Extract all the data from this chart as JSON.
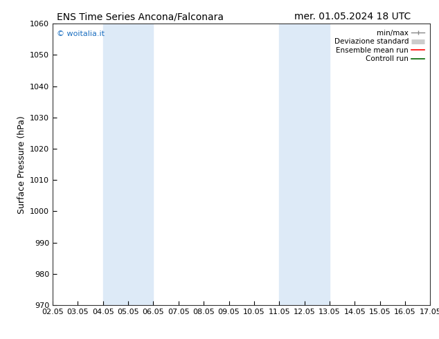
{
  "title_left": "ENS Time Series Ancona/Falconara",
  "title_right": "mer. 01.05.2024 18 UTC",
  "ylabel": "Surface Pressure (hPa)",
  "ylim": [
    970,
    1060
  ],
  "yticks": [
    970,
    980,
    990,
    1000,
    1010,
    1020,
    1030,
    1040,
    1050,
    1060
  ],
  "x_labels": [
    "02.05",
    "03.05",
    "04.05",
    "05.05",
    "06.05",
    "07.05",
    "08.05",
    "09.05",
    "10.05",
    "11.05",
    "12.05",
    "13.05",
    "14.05",
    "15.05",
    "16.05",
    "17.05"
  ],
  "x_values": [
    0,
    1,
    2,
    3,
    4,
    5,
    6,
    7,
    8,
    9,
    10,
    11,
    12,
    13,
    14,
    15
  ],
  "xlim": [
    0,
    15
  ],
  "shaded_bands": [
    {
      "x_start": 2,
      "x_end": 4,
      "color": "#ddeaf7"
    },
    {
      "x_start": 9,
      "x_end": 11,
      "color": "#ddeaf7"
    }
  ],
  "watermark": "© woitalia.it",
  "watermark_color": "#1a6ec0",
  "background_color": "#ffffff",
  "plot_bg_color": "#ffffff",
  "legend_entries": [
    {
      "label": "min/max",
      "line_color": "#888888",
      "lw": 1.0
    },
    {
      "label": "Deviazione standard",
      "line_color": "#cccccc",
      "lw": 5
    },
    {
      "label": "Ensemble mean run",
      "line_color": "#ff0000",
      "lw": 1.2
    },
    {
      "label": "Controll run",
      "line_color": "#006600",
      "lw": 1.2
    }
  ],
  "title_fontsize": 10,
  "axis_label_fontsize": 9,
  "tick_fontsize": 8,
  "legend_fontsize": 7.5
}
